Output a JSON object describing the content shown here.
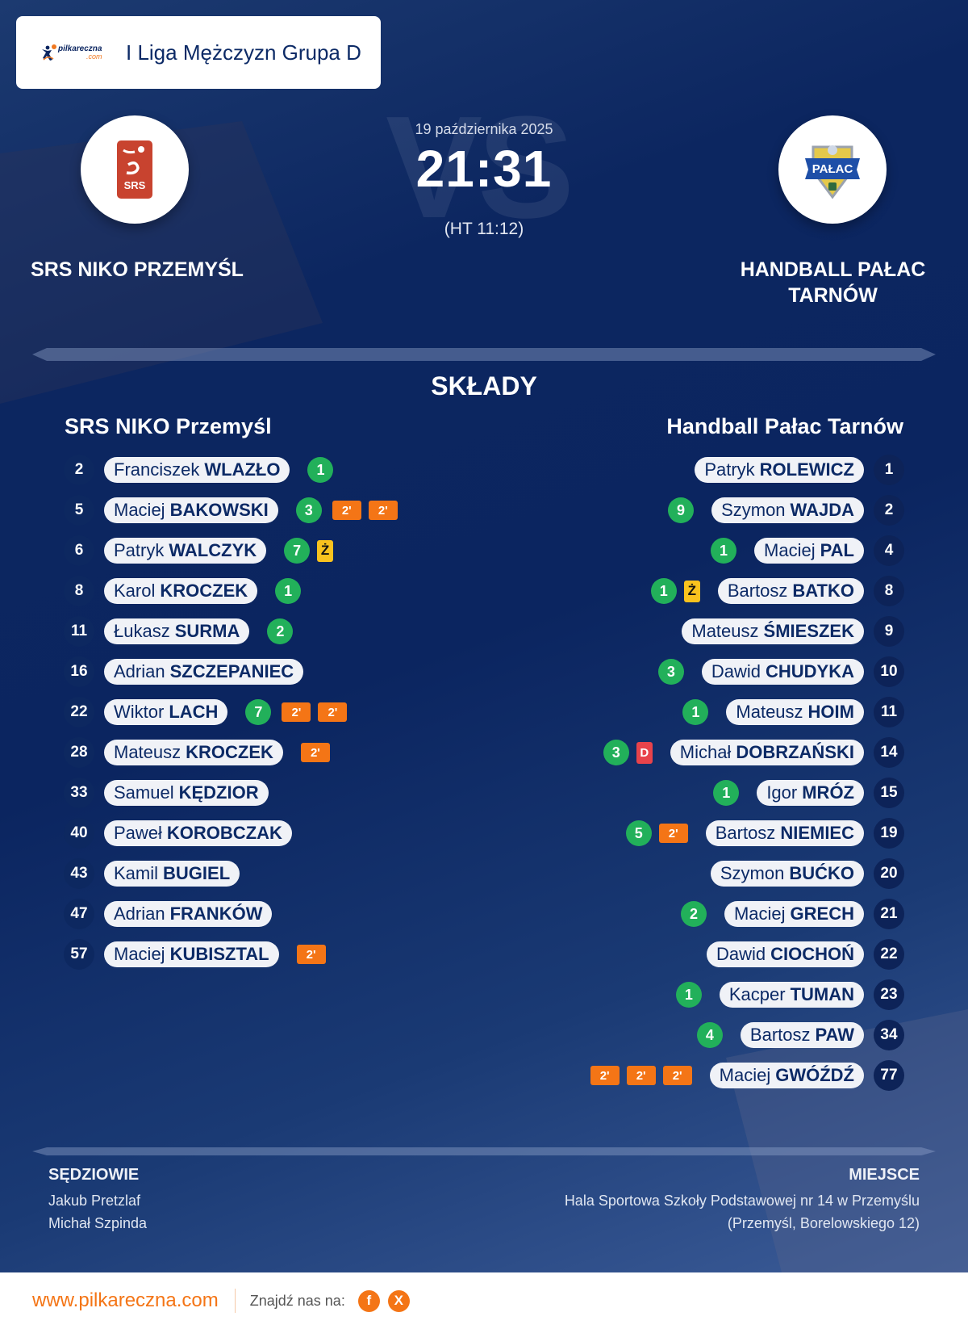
{
  "header": {
    "brand_name": "pilkareczna",
    "brand_suffix": ".com",
    "league": "I Liga Mężczyzn Grupa D"
  },
  "match": {
    "date": "19 października 2025",
    "score": "21:31",
    "halftime": "(HT 11:12)",
    "vs_watermark": "VS"
  },
  "home": {
    "name_upper": "SRS NIKO PRZEMYŚL",
    "name": "SRS NIKO Przemyśl",
    "logo_text": "SRS",
    "logo_color": "#c8432f"
  },
  "away": {
    "name_upper_line1": "HANDBALL PAŁAC",
    "name_upper_line2": "TARNÓW",
    "name": "Handball Pałac Tarnów",
    "logo_text": "PAŁAC",
    "logo_color": "#1e4fa8"
  },
  "section_title": "SKŁADY",
  "home_roster": [
    {
      "number": "2",
      "first": "Franciszek",
      "last": "WLAZŁO",
      "goals": "1",
      "cards": []
    },
    {
      "number": "5",
      "first": "Maciej",
      "last": "BAKOWSKI",
      "goals": "3",
      "cards": [
        "2'",
        "2'"
      ]
    },
    {
      "number": "6",
      "first": "Patryk",
      "last": "WALCZYK",
      "goals": "7",
      "cards": [
        "Ż"
      ]
    },
    {
      "number": "8",
      "first": "Karol",
      "last": "KROCZEK",
      "goals": "1",
      "cards": []
    },
    {
      "number": "11",
      "first": "Łukasz",
      "last": "SURMA",
      "goals": "2",
      "cards": []
    },
    {
      "number": "16",
      "first": "Adrian",
      "last": "SZCZEPANIEC",
      "goals": null,
      "cards": []
    },
    {
      "number": "22",
      "first": "Wiktor",
      "last": "LACH",
      "goals": "7",
      "cards": [
        "2'",
        "2'"
      ]
    },
    {
      "number": "28",
      "first": "Mateusz",
      "last": "KROCZEK",
      "goals": null,
      "cards": [
        "2'"
      ]
    },
    {
      "number": "33",
      "first": "Samuel",
      "last": "KĘDZIOR",
      "goals": null,
      "cards": []
    },
    {
      "number": "40",
      "first": "Paweł",
      "last": "KOROBCZAK",
      "goals": null,
      "cards": []
    },
    {
      "number": "43",
      "first": "Kamil",
      "last": "BUGIEL",
      "goals": null,
      "cards": []
    },
    {
      "number": "47",
      "first": "Adrian",
      "last": "FRANKÓW",
      "goals": null,
      "cards": []
    },
    {
      "number": "57",
      "first": "Maciej",
      "last": "KUBISZTAL",
      "goals": null,
      "cards": [
        "2'"
      ]
    }
  ],
  "away_roster": [
    {
      "number": "1",
      "first": "Patryk",
      "last": "ROLEWICZ",
      "goals": null,
      "cards": []
    },
    {
      "number": "2",
      "first": "Szymon",
      "last": "WAJDA",
      "goals": "9",
      "cards": []
    },
    {
      "number": "4",
      "first": "Maciej",
      "last": "PAL",
      "goals": "1",
      "cards": []
    },
    {
      "number": "8",
      "first": "Bartosz",
      "last": "BATKO",
      "goals": "1",
      "cards": [
        "Ż"
      ]
    },
    {
      "number": "9",
      "first": "Mateusz",
      "last": "ŚMIESZEK",
      "goals": null,
      "cards": []
    },
    {
      "number": "10",
      "first": "Dawid",
      "last": "CHUDYKA",
      "goals": "3",
      "cards": []
    },
    {
      "number": "11",
      "first": "Mateusz",
      "last": "HOIM",
      "goals": "1",
      "cards": []
    },
    {
      "number": "14",
      "first": "Michał",
      "last": "DOBRZAŃSKI",
      "goals": "3",
      "cards": [
        "D"
      ]
    },
    {
      "number": "15",
      "first": "Igor",
      "last": "MRÓZ",
      "goals": "1",
      "cards": []
    },
    {
      "number": "19",
      "first": "Bartosz",
      "last": "NIEMIEC",
      "goals": "5",
      "cards": [
        "2'"
      ]
    },
    {
      "number": "20",
      "first": "Szymon",
      "last": "BUĆKO",
      "goals": null,
      "cards": []
    },
    {
      "number": "21",
      "first": "Maciej",
      "last": "GRECH",
      "goals": "2",
      "cards": []
    },
    {
      "number": "22",
      "first": "Dawid",
      "last": "CIOCHOŃ",
      "goals": null,
      "cards": []
    },
    {
      "number": "23",
      "first": "Kacper",
      "last": "TUMAN",
      "goals": "1",
      "cards": []
    },
    {
      "number": "34",
      "first": "Bartosz",
      "last": "PAW",
      "goals": "4",
      "cards": []
    },
    {
      "number": "77",
      "first": "Maciej",
      "last": "GWÓŹDŹ",
      "goals": null,
      "cards": [
        "2'",
        "2'",
        "2'"
      ]
    }
  ],
  "referees": {
    "label": "SĘDZIOWIE",
    "names": [
      "Jakub Pretzlaf",
      "Michał Szpinda"
    ]
  },
  "venue": {
    "label": "MIEJSCE",
    "line1": "Hala Sportowa Szkoły Podstawowej nr 14 w Przemyślu",
    "line2": "(Przemyśl, Borelowskiego 12)"
  },
  "footer": {
    "site": "www.pilkareczna.com",
    "find_us": "Znajdź nas na:",
    "social": [
      {
        "name": "facebook",
        "glyph": "f"
      },
      {
        "name": "x",
        "glyph": "X"
      }
    ]
  },
  "colors": {
    "background": "#0b2560",
    "goal": "#22b05a",
    "two_minutes": "#f47516",
    "yellow_card": "#f9c21e",
    "red_card": "#e8434b",
    "accent": "#f47516"
  }
}
